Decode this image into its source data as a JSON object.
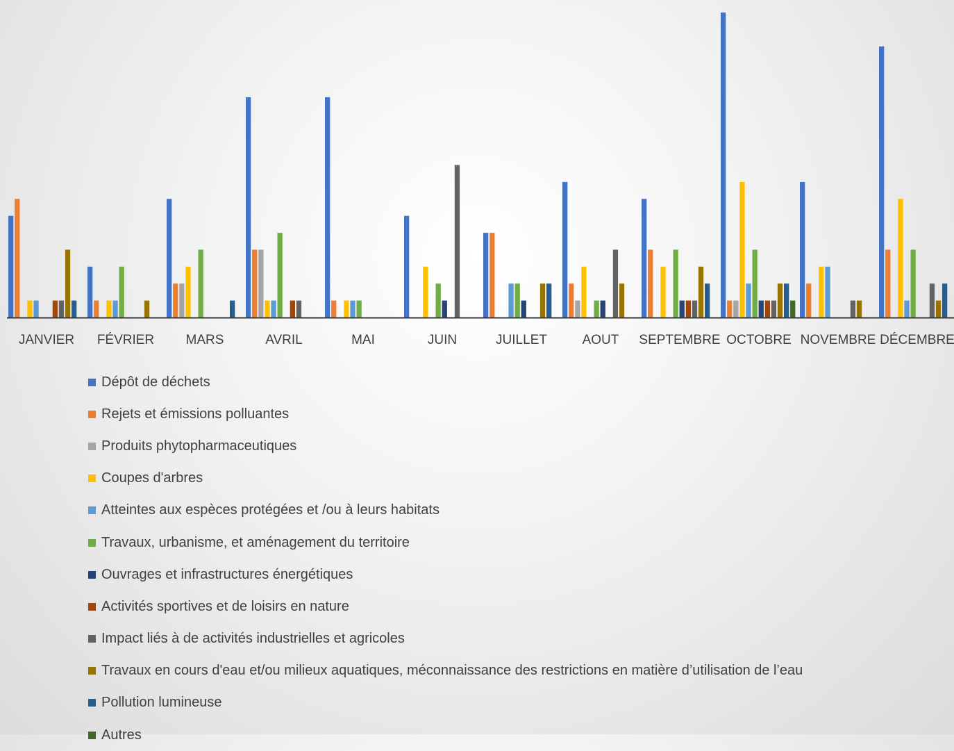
{
  "chart_data": {
    "type": "bar",
    "categories": [
      "JANVIER",
      "FÉVRIER",
      "MARS",
      "AVRIL",
      "MAI",
      "JUIN",
      "JUILLET",
      "AOUT",
      "SEPTEMBRE",
      "OCTOBRE",
      "NOVEMBRE",
      "DÉCEMBRE"
    ],
    "ylim": [
      0,
      18
    ],
    "legend_position": "bottom",
    "grid": false,
    "series": [
      {
        "name": "Dépôt de déchets",
        "color": "#4472C4",
        "values": [
          6,
          3,
          7,
          13,
          13,
          6,
          5,
          8,
          7,
          18,
          8,
          16
        ]
      },
      {
        "name": "Rejets et émissions polluantes",
        "color": "#ED7D31",
        "values": [
          7,
          1,
          2,
          4,
          1,
          0,
          5,
          2,
          4,
          1,
          2,
          4
        ]
      },
      {
        "name": "Produits phytopharmaceutiques",
        "color": "#A5A5A5",
        "values": [
          0,
          0,
          2,
          4,
          0,
          0,
          0,
          1,
          0,
          1,
          0,
          0
        ]
      },
      {
        "name": "Coupes d'arbres",
        "color": "#FFC000",
        "values": [
          1,
          1,
          3,
          1,
          1,
          3,
          0,
          3,
          3,
          8,
          3,
          7
        ]
      },
      {
        "name": "Atteintes aux espèces protégées et /ou à leurs habitats",
        "color": "#5B9BD5",
        "values": [
          1,
          1,
          0,
          1,
          1,
          0,
          2,
          0,
          0,
          2,
          3,
          1
        ]
      },
      {
        "name": "Travaux, urbanisme, et aménagement du territoire",
        "color": "#70AD47",
        "values": [
          0,
          3,
          4,
          5,
          1,
          2,
          2,
          1,
          4,
          4,
          0,
          4
        ]
      },
      {
        "name": "Ouvrages et infrastructures énergétiques",
        "color": "#264478",
        "values": [
          0,
          0,
          0,
          0,
          0,
          1,
          1,
          1,
          1,
          1,
          0,
          0
        ]
      },
      {
        "name": "Activités sportives et de loisirs en nature",
        "color": "#9E480E",
        "values": [
          1,
          0,
          0,
          1,
          0,
          0,
          0,
          0,
          1,
          1,
          0,
          0
        ]
      },
      {
        "name": "Impact liés à de activités industrielles et agricoles",
        "color": "#636363",
        "values": [
          1,
          0,
          0,
          1,
          0,
          9,
          0,
          4,
          1,
          1,
          1,
          2
        ]
      },
      {
        "name": "Travaux en cours d'eau et/ou milieux aquatiques, méconnaissance des restrictions en matière d’utilisation de l’eau",
        "color": "#997300",
        "values": [
          4,
          1,
          0,
          0,
          0,
          0,
          2,
          2,
          3,
          2,
          1,
          1
        ]
      },
      {
        "name": "Pollution lumineuse",
        "color": "#255E91",
        "values": [
          1,
          0,
          1,
          0,
          0,
          0,
          2,
          0,
          2,
          2,
          0,
          2
        ]
      },
      {
        "name": "Autres",
        "color": "#43682B",
        "values": [
          0,
          0,
          0,
          0,
          0,
          0,
          0,
          0,
          0,
          1,
          0,
          0
        ]
      }
    ]
  }
}
